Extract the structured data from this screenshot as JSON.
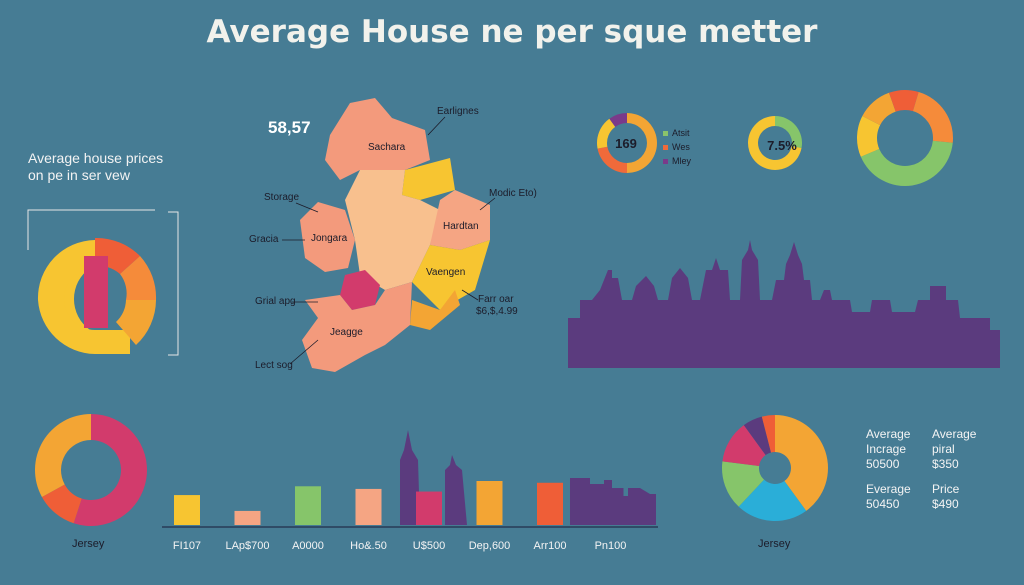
{
  "header": {
    "title": "Average House ne per sque metter"
  },
  "subtitle": {
    "line1": "Average house prices",
    "line2": "on pe in ser vew"
  },
  "map": {
    "value": "58,57",
    "region_labels": [
      "Sachara",
      "Jongara",
      "Hardtan",
      "Vaengen",
      "Jeagge"
    ],
    "callouts": [
      "Earlignes",
      "Storage",
      "Gracia",
      "Grial apg",
      "Lect sog",
      "Modic Eto)",
      "Farr oar",
      "$6,$,4.99"
    ]
  },
  "donuts_top": {
    "d1": {
      "center": "169",
      "legend": [
        "Atsit",
        "Wes",
        "Mley"
      ],
      "legend_colors": [
        "#8bc36b",
        "#f06a3a",
        "#7a3a8a"
      ]
    },
    "d2": {
      "center": "7.5%"
    }
  },
  "stats": {
    "s1_label1": "Average",
    "s1_label2": "Incrage",
    "s1_value": "50500",
    "s2_label1": "Average",
    "s2_label2": "piral",
    "s2_value": "$350",
    "s3_label": "Everage",
    "s3_value": "50450",
    "s4_label": "Price",
    "s4_value": "$490"
  },
  "donut_bottom_left": {
    "label": "Jersey"
  },
  "pie_bottom_right": {
    "label": "Jersey"
  },
  "colors": {
    "background": "#467c94",
    "yellow": "#f7c531",
    "orange": "#f3a534",
    "red_orange": "#ef5e37",
    "pink": "#d23b6c",
    "salmon": "#f5a583",
    "green": "#86c56a",
    "purple": "#5b3b7e",
    "blue": "#2aaed8"
  },
  "chart_data": [
    {
      "type": "bar",
      "categories": [
        "FI107",
        "LAp$700",
        "A0000",
        "Ho&.50",
        "U$500",
        "Dep,600",
        "Arr100",
        "Pn100"
      ],
      "values": [
        34,
        16,
        44,
        41,
        38,
        50,
        48,
        42
      ],
      "bar_colors": [
        "#f7c531",
        "#f5a583",
        "#86c56a",
        "#f5a583",
        "#d23b6c",
        "#f3a534",
        "#ef5e37",
        "#5b3b7e"
      ],
      "ylim": [
        0,
        100
      ]
    },
    {
      "type": "pie",
      "values": [
        40,
        22,
        15,
        13,
        6,
        4
      ],
      "colors": [
        "#f3a534",
        "#2aaed8",
        "#86c56a",
        "#d23b6c",
        "#5b3b7e",
        "#ef5e37"
      ]
    },
    {
      "type": "pie",
      "values": [
        55,
        12,
        33
      ],
      "colors": [
        "#d23b6c",
        "#ef5e37",
        "#f3a534"
      ]
    },
    {
      "type": "pie",
      "values": [
        50,
        22,
        18,
        10
      ],
      "colors": [
        "#f3a534",
        "#f06a3a",
        "#f7c531",
        "#7a3a8a"
      ]
    },
    {
      "type": "pie",
      "values": [
        28,
        72
      ],
      "colors": [
        "#86c56a",
        "#f7c531"
      ]
    },
    {
      "type": "pie",
      "values": [
        42,
        14,
        12,
        10,
        22
      ],
      "colors": [
        "#86c56a",
        "#f7c531",
        "#f3a534",
        "#ef5e37",
        "#f58b3a"
      ]
    }
  ]
}
